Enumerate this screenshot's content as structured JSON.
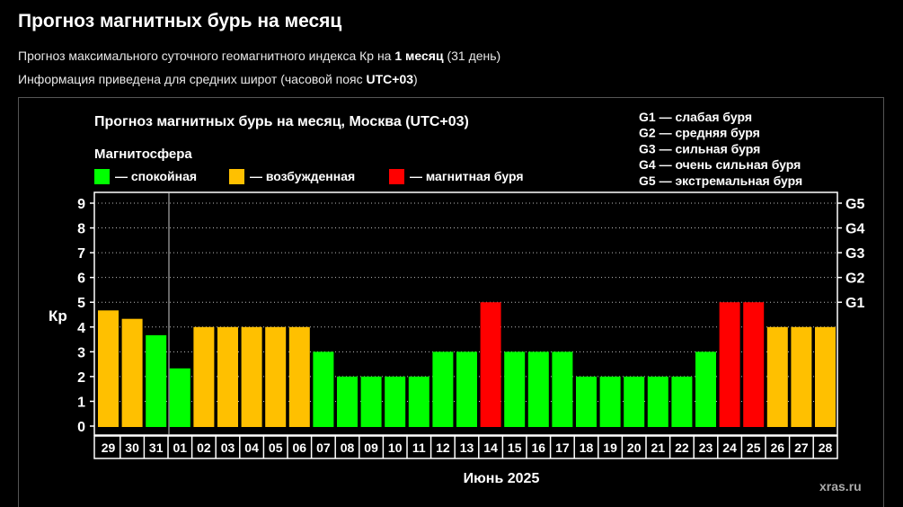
{
  "page": {
    "title": "Прогноз магнитных бурь на месяц",
    "subtitle1_pre": "Прогноз максимального суточного геомагнитного индекса Кр на ",
    "subtitle1_bold": "1 месяц",
    "subtitle1_post": " (31 день)",
    "subtitle2_pre": "Информация приведена для средних широт (часовой пояс ",
    "subtitle2_bold": "UTC+03",
    "subtitle2_post": ")"
  },
  "chart_data": {
    "type": "bar",
    "title": "Прогноз магнитных бурь на месяц, Москва (UTC+03)",
    "legend_title": "Магнитосфера",
    "legend": [
      {
        "label": "— спокойная",
        "color": "#00ff00"
      },
      {
        "label": "— возбужденная",
        "color": "#ffc000"
      },
      {
        "label": "— магнитная буря",
        "color": "#ff0000"
      }
    ],
    "g_legend": [
      "G1 — слабая буря",
      "G2 — средняя буря",
      "G3 — сильная буря",
      "G4 — очень сильная буря",
      "G5 — экстремальная буря"
    ],
    "ylabel": "Кр",
    "xlabel": "Июнь 2025",
    "ylim": [
      0,
      9
    ],
    "yticks": [
      "0",
      "1",
      "2",
      "3",
      "4",
      "5",
      "6",
      "7",
      "8",
      "9"
    ],
    "right_ticks": [
      {
        "value": 5,
        "label": "G1"
      },
      {
        "value": 6,
        "label": "G2"
      },
      {
        "value": 7,
        "label": "G3"
      },
      {
        "value": 8,
        "label": "G4"
      },
      {
        "value": 9,
        "label": "G5"
      }
    ],
    "categories": [
      "29",
      "30",
      "31",
      "01",
      "02",
      "03",
      "04",
      "05",
      "06",
      "07",
      "08",
      "09",
      "10",
      "11",
      "12",
      "13",
      "14",
      "15",
      "16",
      "17",
      "18",
      "19",
      "20",
      "21",
      "22",
      "23",
      "24",
      "25",
      "26",
      "27",
      "28"
    ],
    "values": [
      4.67,
      4.33,
      3.67,
      2.33,
      4,
      4,
      4,
      4,
      4,
      3,
      2,
      2,
      2,
      2,
      3,
      3,
      5,
      3,
      3,
      3,
      2,
      2,
      2,
      2,
      2,
      3,
      5,
      5,
      4,
      4,
      4
    ],
    "level_colors": {
      "quiet": "#00ff00",
      "active": "#ffc000",
      "storm": "#ff0000"
    },
    "month_divider_after_index": 2,
    "watermark": "xras.ru"
  }
}
